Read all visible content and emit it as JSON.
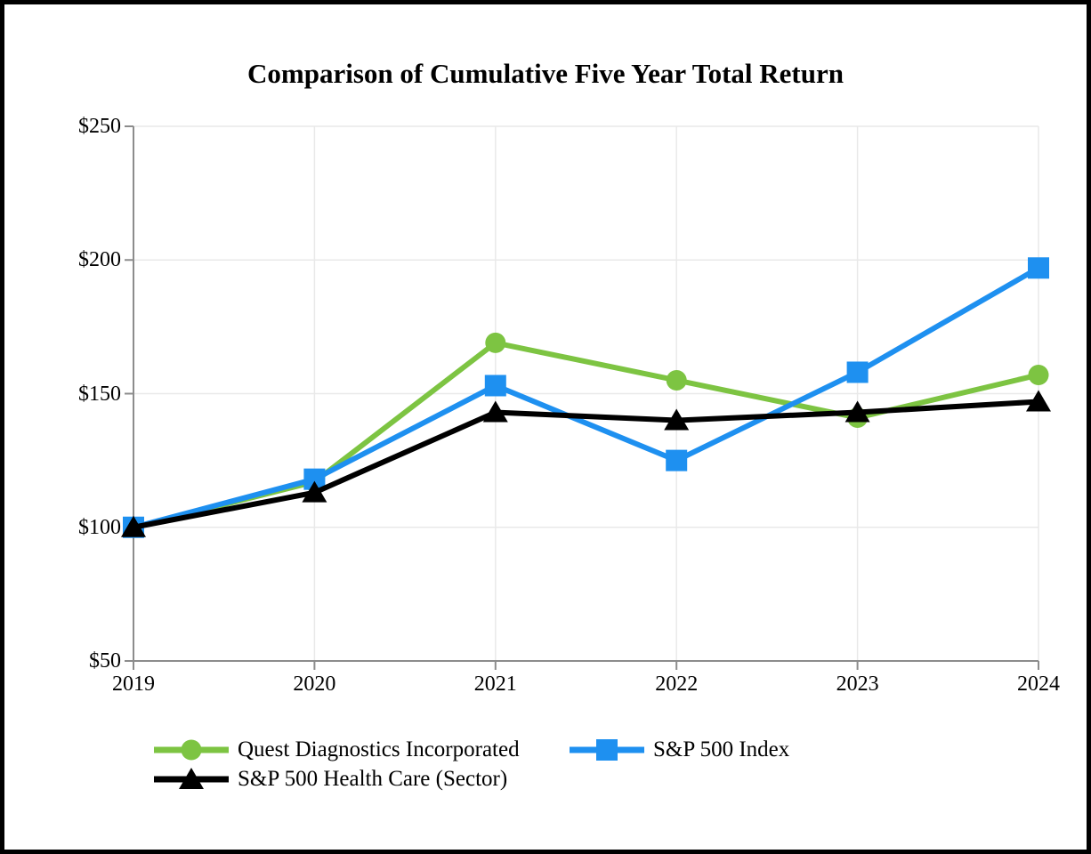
{
  "page": {
    "background_color": "#ffffff",
    "frame_border_color": "#000000"
  },
  "chart_data": {
    "type": "line",
    "title": "Comparison of Cumulative Five Year Total Return",
    "x": [
      2019,
      2020,
      2021,
      2022,
      2023,
      2024
    ],
    "x_tick_labels": [
      "2019",
      "2020",
      "2021",
      "2022",
      "2023",
      "2024"
    ],
    "y_ticks": [
      50,
      100,
      150,
      200,
      250
    ],
    "y_tick_labels": [
      "$50",
      "$100",
      "$150",
      "$200",
      "$250"
    ],
    "ylim": [
      50,
      250
    ],
    "grid": true,
    "legend_position": "bottom",
    "axis_color": "#8c8c8c",
    "gridline_color": "#e9e9e9",
    "series": [
      {
        "name": "Quest Diagnostics Incorporated",
        "color": "#7dc442",
        "marker": "circle",
        "values": [
          100,
          117,
          169,
          155,
          141,
          157
        ]
      },
      {
        "name": "S&P 500 Index",
        "color": "#1e90f0",
        "marker": "square",
        "values": [
          100,
          118,
          153,
          125,
          158,
          197
        ]
      },
      {
        "name": "S&P 500 Health Care (Sector)",
        "color": "#000000",
        "marker": "triangle",
        "values": [
          100,
          113,
          143,
          140,
          143,
          147
        ]
      }
    ]
  }
}
